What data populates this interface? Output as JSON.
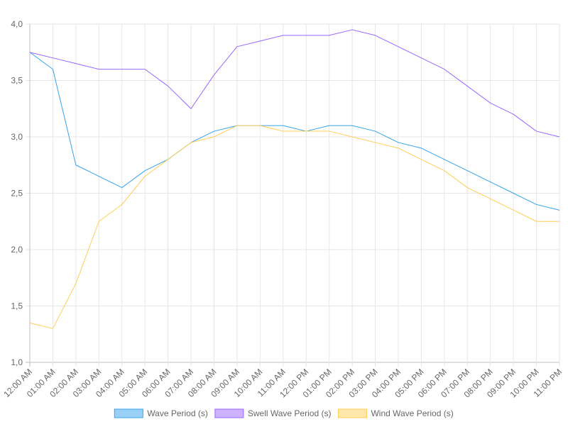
{
  "chart_data": {
    "type": "line",
    "title": "",
    "xlabel": "",
    "ylabel": "",
    "categories": [
      "12:00 AM",
      "01:00 AM",
      "02:00 AM",
      "03:00 AM",
      "04:00 AM",
      "05:00 AM",
      "06:00 AM",
      "07:00 AM",
      "08:00 AM",
      "09:00 AM",
      "10:00 AM",
      "11:00 AM",
      "12:00 PM",
      "01:00 PM",
      "02:00 PM",
      "03:00 PM",
      "04:00 PM",
      "05:00 PM",
      "06:00 PM",
      "07:00 PM",
      "08:00 PM",
      "09:00 PM",
      "10:00 PM",
      "11:00 PM"
    ],
    "ylim": [
      1.0,
      4.0
    ],
    "yticks": [
      "1,0",
      "1,5",
      "2,0",
      "2,5",
      "3,0",
      "3,5",
      "4,0"
    ],
    "grid": true,
    "legend_position": "bottom",
    "series": [
      {
        "name": "Wave Period (s)",
        "color": "#36a2eb",
        "fill": "#9ad0f5",
        "values": [
          3.75,
          3.6,
          2.75,
          2.65,
          2.55,
          2.7,
          2.8,
          2.95,
          3.05,
          3.1,
          3.1,
          3.1,
          3.05,
          3.1,
          3.1,
          3.05,
          2.95,
          2.9,
          2.8,
          2.7,
          2.6,
          2.5,
          2.4,
          2.35
        ]
      },
      {
        "name": "Swell Wave Period (s)",
        "color": "#9966ff",
        "fill": "#ccb2ff",
        "values": [
          3.75,
          3.7,
          3.65,
          3.6,
          3.6,
          3.6,
          3.45,
          3.25,
          3.55,
          3.8,
          3.85,
          3.9,
          3.9,
          3.9,
          3.95,
          3.9,
          3.8,
          3.7,
          3.6,
          3.45,
          3.3,
          3.2,
          3.05,
          3.0
        ]
      },
      {
        "name": "Wind Wave Period (s)",
        "color": "#ffcd56",
        "fill": "#ffe6aa",
        "values": [
          1.35,
          1.3,
          1.7,
          2.25,
          2.4,
          2.65,
          2.8,
          2.95,
          3.0,
          3.1,
          3.1,
          3.05,
          3.05,
          3.05,
          3.0,
          2.95,
          2.9,
          2.8,
          2.7,
          2.55,
          2.45,
          2.35,
          2.25,
          2.25
        ]
      }
    ]
  }
}
